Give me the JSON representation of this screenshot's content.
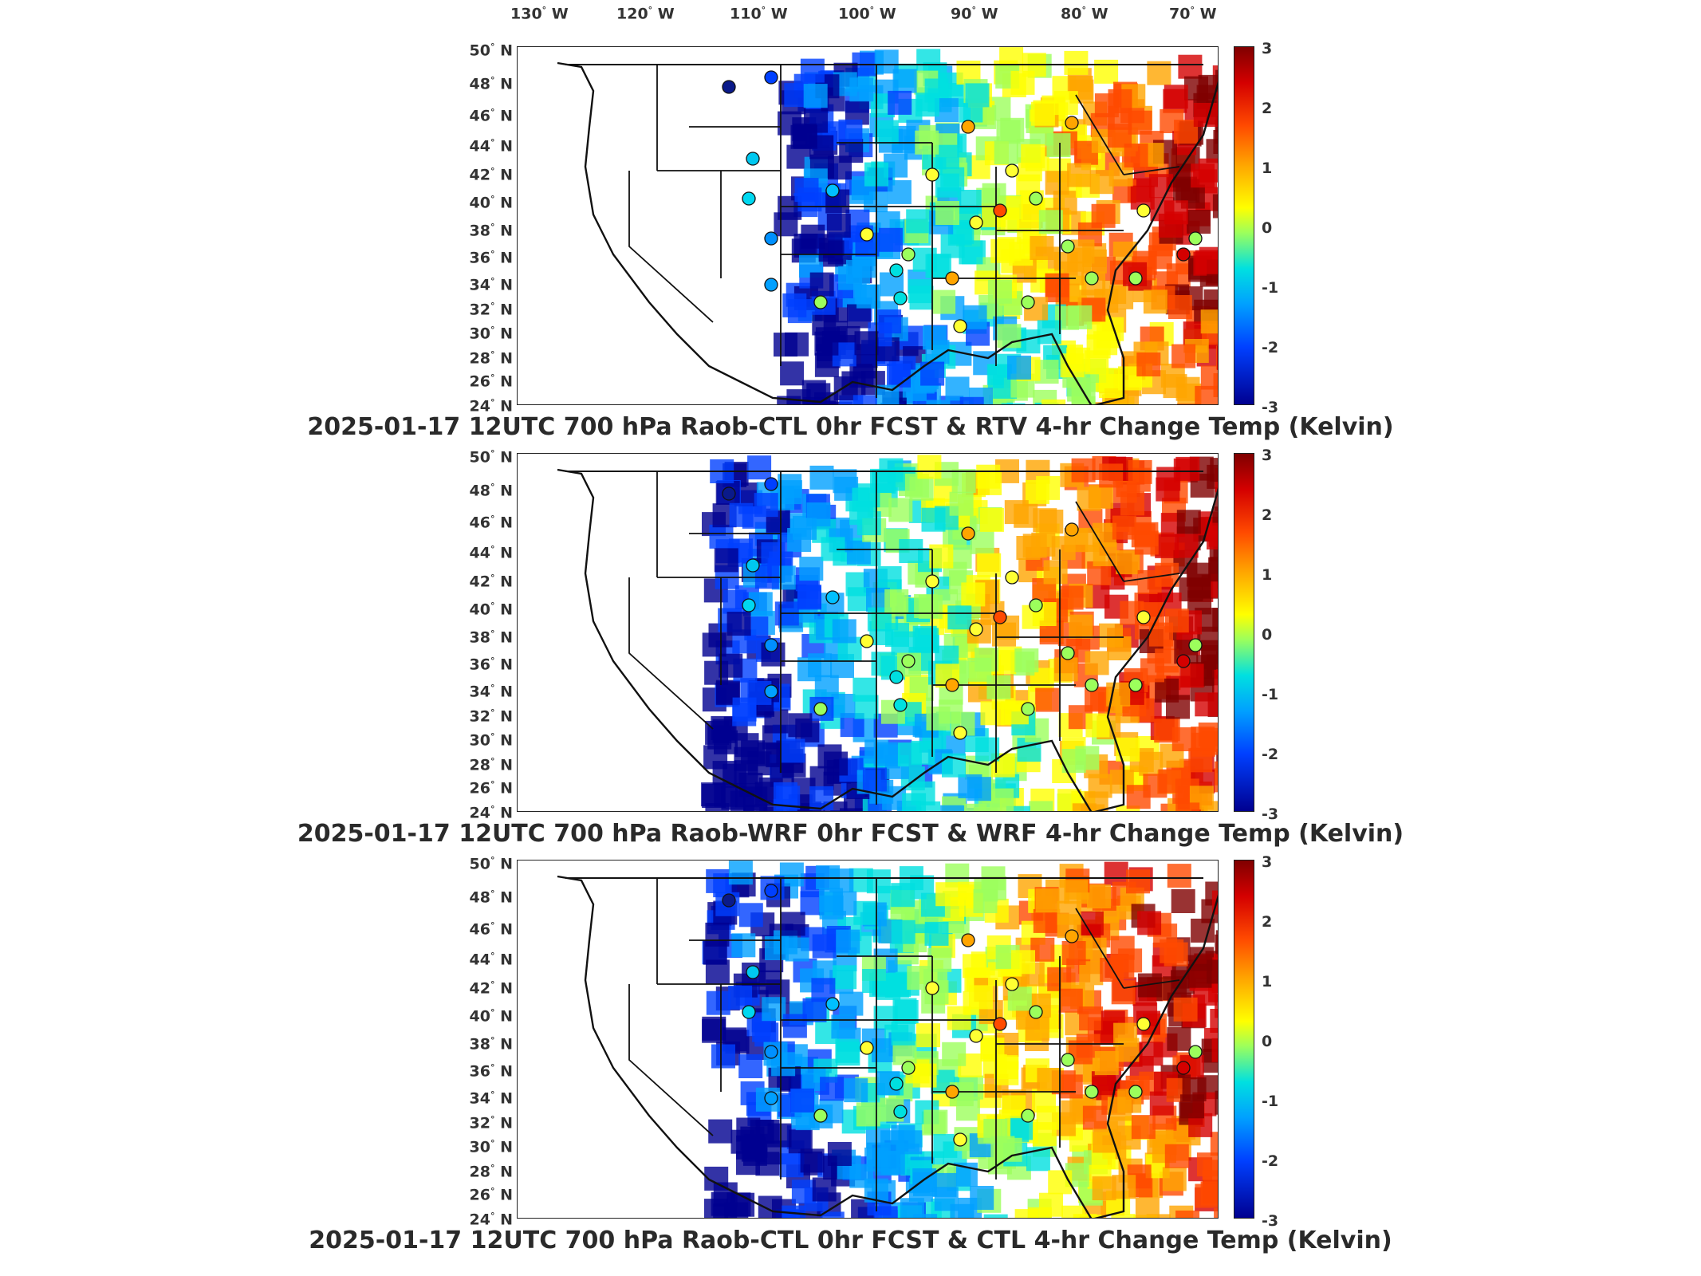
{
  "lon_labels": [
    {
      "deg": "130",
      "hem": "W"
    },
    {
      "deg": "120",
      "hem": "W"
    },
    {
      "deg": "110",
      "hem": "W"
    },
    {
      "deg": "100",
      "hem": "W"
    },
    {
      "deg": "90",
      "hem": "W"
    },
    {
      "deg": "80",
      "hem": "W"
    },
    {
      "deg": "70",
      "hem": "W"
    }
  ],
  "lat_labels": [
    {
      "deg": "50",
      "hem": "N"
    },
    {
      "deg": "48",
      "hem": "N"
    },
    {
      "deg": "46",
      "hem": "N"
    },
    {
      "deg": "44",
      "hem": "N"
    },
    {
      "deg": "42",
      "hem": "N"
    },
    {
      "deg": "40",
      "hem": "N"
    },
    {
      "deg": "38",
      "hem": "N"
    },
    {
      "deg": "36",
      "hem": "N"
    },
    {
      "deg": "34",
      "hem": "N"
    },
    {
      "deg": "32",
      "hem": "N"
    },
    {
      "deg": "30",
      "hem": "N"
    },
    {
      "deg": "28",
      "hem": "N"
    },
    {
      "deg": "26",
      "hem": "N"
    },
    {
      "deg": "24",
      "hem": "N"
    }
  ],
  "colorbar": {
    "ticks": [
      "3",
      "2",
      "1",
      "0",
      "-1",
      "-2",
      "-3"
    ],
    "colors": {
      "max": "#800000",
      "high": "#ff4a00",
      "mid_high": "#ffff00",
      "mid": "#9cff5c",
      "mid_low": "#00e0e0",
      "low": "#0040ff",
      "min": "#000090"
    }
  },
  "panels": [
    {
      "title": "2025-01-17 12UTC 700 hPa Raob-CTL 0hr FCST & RTV 4-hr Change Temp (Kelvin)"
    },
    {
      "title": "2025-01-17 12UTC 700 hPa Raob-WRF 0hr FCST & WRF 4-hr Change Temp (Kelvin)"
    },
    {
      "title": "2025-01-17 12UTC 700 hPa Raob-CTL 0hr FCST & CTL 4-hr Change Temp (Kelvin)"
    }
  ]
}
